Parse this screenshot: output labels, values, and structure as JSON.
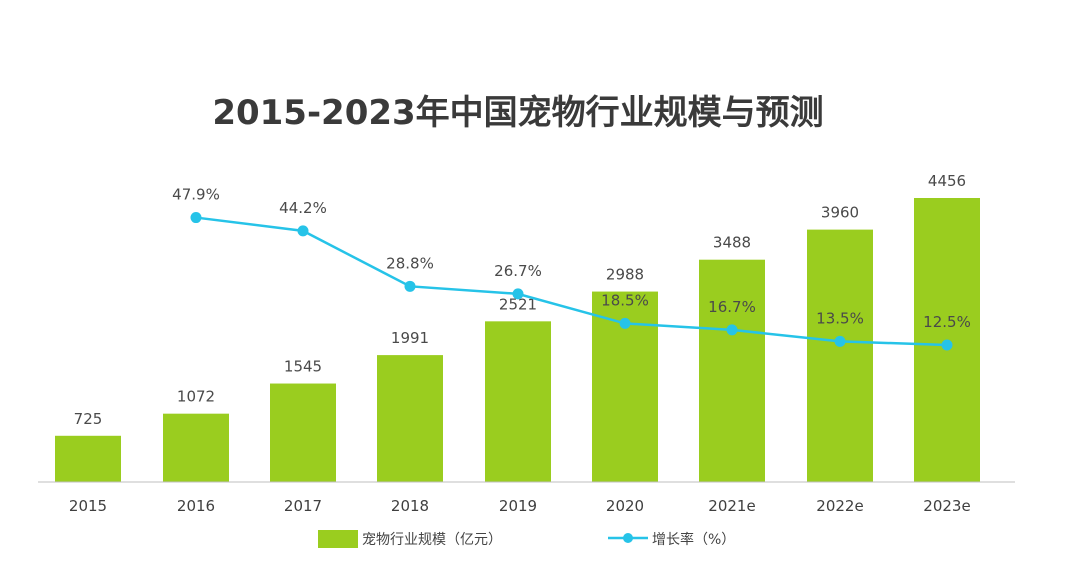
{
  "chart_data": {
    "type": "bar",
    "title": "2015-2023年中国宠物行业规模与预测",
    "categories": [
      "2015",
      "2016",
      "2017",
      "2018",
      "2019",
      "2020",
      "2021e",
      "2022e",
      "2023e"
    ],
    "series": [
      {
        "name": "宠物行业规模（亿元）",
        "type": "bar",
        "values": [
          725,
          1072,
          1545,
          1991,
          2521,
          2988,
          3488,
          3960,
          4456
        ],
        "labels": [
          "725",
          "1072",
          "1545",
          "1991",
          "2521",
          "2988",
          "3488",
          "3960",
          "4456"
        ],
        "color": "#9ACD1F"
      },
      {
        "name": "增长率（%）",
        "type": "line",
        "values": [
          null,
          47.9,
          44.2,
          28.8,
          26.7,
          18.5,
          16.7,
          13.5,
          12.5
        ],
        "labels": [
          "",
          "47.9%",
          "44.2%",
          "28.8%",
          "26.7%",
          "18.5%",
          "16.7%",
          "13.5%",
          "12.5%"
        ],
        "color": "#26C3E8"
      }
    ],
    "xlabel": "",
    "ylabel": "",
    "ylim": [
      0,
      5000
    ],
    "y2lim": [
      0,
      90
    ],
    "grid": false,
    "legend_position": "bottom"
  }
}
